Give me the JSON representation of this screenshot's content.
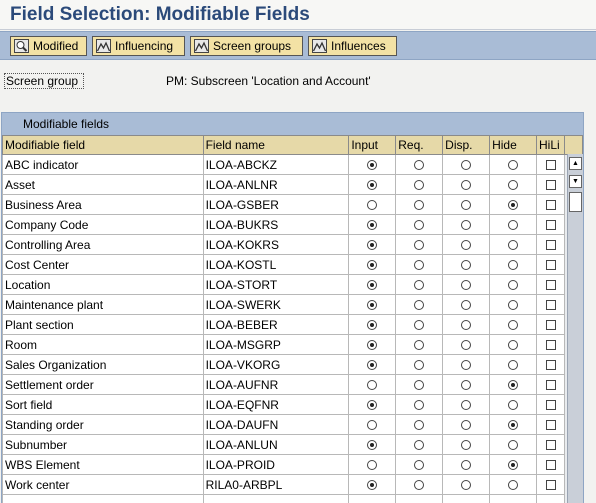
{
  "title": "Field Selection: Modifiable Fields",
  "toolbar": {
    "buttons": [
      {
        "label": "Modified",
        "icon": "magnifier-icon"
      },
      {
        "label": "Influencing",
        "icon": "mountain-icon"
      },
      {
        "label": "Screen groups",
        "icon": "mountain-icon"
      },
      {
        "label": "Influences",
        "icon": "mountain-icon"
      }
    ]
  },
  "screen_group": {
    "label": "Screen group",
    "value": "PM: Subscreen 'Location and Account'"
  },
  "table": {
    "title": "Modifiable fields",
    "headers": [
      "Modifiable field",
      "Field name",
      "Input",
      "Req.",
      "Disp.",
      "Hide",
      "HiLi"
    ],
    "rows": [
      {
        "field": "ABC indicator",
        "name": "ILOA-ABCKZ",
        "sel": "Input"
      },
      {
        "field": "Asset",
        "name": "ILOA-ANLNR",
        "sel": "Input"
      },
      {
        "field": "Business Area",
        "name": "ILOA-GSBER",
        "sel": "Hide"
      },
      {
        "field": "Company Code",
        "name": "ILOA-BUKRS",
        "sel": "Input"
      },
      {
        "field": "Controlling Area",
        "name": "ILOA-KOKRS",
        "sel": "Input"
      },
      {
        "field": "Cost Center",
        "name": "ILOA-KOSTL",
        "sel": "Input"
      },
      {
        "field": "Location",
        "name": "ILOA-STORT",
        "sel": "Input"
      },
      {
        "field": "Maintenance plant",
        "name": "ILOA-SWERK",
        "sel": "Input"
      },
      {
        "field": "Plant section",
        "name": "ILOA-BEBER",
        "sel": "Input"
      },
      {
        "field": "Room",
        "name": "ILOA-MSGRP",
        "sel": "Input"
      },
      {
        "field": "Sales Organization",
        "name": "ILOA-VKORG",
        "sel": "Input"
      },
      {
        "field": "Settlement order",
        "name": "ILOA-AUFNR",
        "sel": "Hide"
      },
      {
        "field": "Sort field",
        "name": "ILOA-EQFNR",
        "sel": "Input"
      },
      {
        "field": "Standing order",
        "name": "ILOA-DAUFN",
        "sel": "Hide"
      },
      {
        "field": "Subnumber",
        "name": "ILOA-ANLUN",
        "sel": "Input"
      },
      {
        "field": "WBS Element",
        "name": "ILOA-PROID",
        "sel": "Hide"
      },
      {
        "field": "Work center",
        "name": "RILA0-ARBPL",
        "sel": "Input"
      },
      {
        "field": "",
        "name": "",
        "sel": ""
      }
    ]
  }
}
